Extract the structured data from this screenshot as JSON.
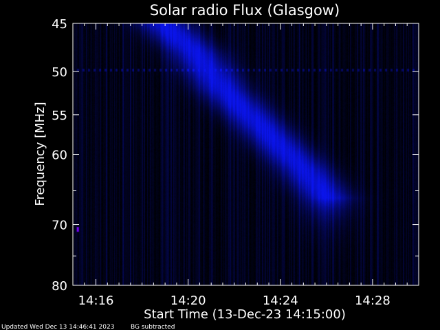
{
  "chart_data": {
    "type": "heatmap",
    "title": "Solar radio Flux (Glasgow)",
    "xlabel": "Start Time (13-Dec-23 14:15:00)",
    "ylabel": "Frequency [MHz]",
    "x_unit": "minutes after 14:15:00",
    "xlim": [
      0,
      15
    ],
    "ylim": [
      80,
      45
    ],
    "y_scale": "log",
    "x_ticks": [
      {
        "value": 1,
        "label": "14:16"
      },
      {
        "value": 5,
        "label": "14:20"
      },
      {
        "value": 9,
        "label": "14:24"
      },
      {
        "value": 13,
        "label": "14:28"
      }
    ],
    "y_ticks": [
      {
        "value": 45,
        "label": "45"
      },
      {
        "value": 50,
        "label": "50"
      },
      {
        "value": 55,
        "label": "55"
      },
      {
        "value": 60,
        "label": "60"
      },
      {
        "value": 70,
        "label": "70"
      },
      {
        "value": 80,
        "label": "80"
      }
    ],
    "colormap": "black-blue",
    "colors": {
      "background": "#000000",
      "emission": "#2a3cff",
      "axes": "#ffffff",
      "spot": "#7a00ff"
    },
    "burst_ridge": [
      {
        "t": 3.9,
        "f": 45
      },
      {
        "t": 5.3,
        "f": 48
      },
      {
        "t": 6.5,
        "f": 52
      },
      {
        "t": 8.0,
        "f": 56
      },
      {
        "t": 10.0,
        "f": 62
      },
      {
        "t": 11.0,
        "f": 66
      }
    ],
    "interference_band_mhz": 49.8,
    "spot": {
      "t": 0.2,
      "f": 70.7
    }
  },
  "footer": {
    "updated": "Updated Wed Dec 13 14:46:41 2023",
    "note": "BG subtracted"
  }
}
